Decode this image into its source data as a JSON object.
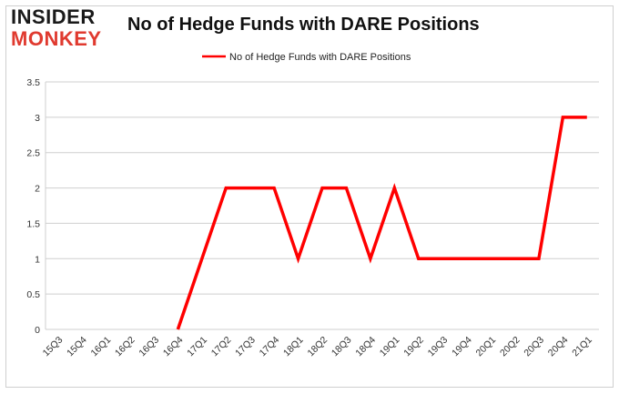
{
  "brand": {
    "line1": "INSIDER",
    "line2": "MONKEY"
  },
  "chart_data": {
    "type": "line",
    "title": "No of Hedge Funds with DARE Positions",
    "xlabel": "",
    "ylabel": "",
    "categories": [
      "15Q3",
      "15Q4",
      "16Q1",
      "16Q2",
      "16Q3",
      "16Q4",
      "17Q1",
      "17Q2",
      "17Q3",
      "17Q4",
      "18Q1",
      "18Q2",
      "18Q3",
      "18Q4",
      "19Q1",
      "19Q2",
      "19Q3",
      "19Q4",
      "20Q1",
      "20Q2",
      "20Q3",
      "20Q4",
      "21Q1"
    ],
    "series": [
      {
        "name": "No of Hedge Funds with DARE Positions",
        "color": "#ff0000",
        "values": [
          null,
          null,
          null,
          null,
          null,
          0,
          1,
          2,
          2,
          2,
          1,
          2,
          2,
          1,
          2,
          1,
          1,
          1,
          1,
          1,
          1,
          3,
          3
        ]
      }
    ],
    "ylim": [
      0,
      3.5
    ],
    "yticks": [
      "0",
      "0.5",
      "1",
      "1.5",
      "2",
      "2.5",
      "3",
      "3.5"
    ],
    "ytick_values": [
      0,
      0.5,
      1,
      1.5,
      2,
      2.5,
      3,
      3.5
    ],
    "grid": true,
    "legend": "top-center"
  }
}
